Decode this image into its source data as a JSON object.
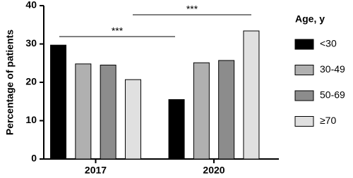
{
  "chart_data": {
    "type": "bar",
    "y_label": "Percentage of patients",
    "legend_title": "Age, y",
    "categories": [
      "2017",
      "2020"
    ],
    "series": [
      {
        "name": "<30",
        "color": "#000000",
        "values": [
          29.7,
          15.5
        ]
      },
      {
        "name": "30-49",
        "color": "#b0b0b0",
        "values": [
          24.8,
          25.1
        ]
      },
      {
        "name": "50-69",
        "color": "#8c8c8c",
        "values": [
          24.5,
          25.7
        ]
      },
      {
        "name": "≥70",
        "color": "#e0e0e0",
        "values": [
          20.7,
          33.4
        ]
      }
    ],
    "annotations": [
      {
        "text": "***"
      },
      {
        "text": "***"
      }
    ],
    "ylim": [
      0,
      40
    ],
    "yticks": [
      0,
      10,
      20,
      30,
      40
    ],
    "legend": "right"
  }
}
